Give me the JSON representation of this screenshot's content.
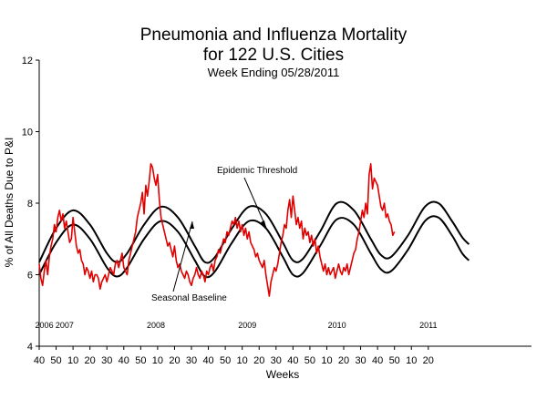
{
  "chart_data": {
    "type": "line",
    "title": "Pneumonia and Influenza Mortality",
    "title2": "for 122 U.S. Cities",
    "subtitle": "Week Ending  05/28/2011",
    "xlabel": "Weeks",
    "ylabel": "% of All Deaths Due to P&I",
    "ylim": [
      4,
      12
    ],
    "yticks": [
      4,
      6,
      8,
      10,
      12
    ],
    "week_index_range": [
      0,
      291
    ],
    "x_tick_labels": [
      "40",
      "50",
      "10",
      "20",
      "30",
      "40",
      "50",
      "10",
      "20",
      "30",
      "40",
      "50",
      "10",
      "20",
      "30",
      "40",
      "50",
      "10",
      "20",
      "30",
      "40",
      "50",
      "10",
      "20"
    ],
    "year_labels": [
      {
        "label": "2006",
        "week_index": 3
      },
      {
        "label": "2007",
        "week_index": 15
      },
      {
        "label": "2008",
        "week_index": 69
      },
      {
        "label": "2009",
        "week_index": 123
      },
      {
        "label": "2010",
        "week_index": 176
      },
      {
        "label": "2011",
        "week_index": 230
      }
    ],
    "annotations": [
      {
        "text": "Epidemic Threshold"
      },
      {
        "text": "Seasonal Baseline"
      }
    ],
    "grid": false,
    "series_colors": {
      "observed": "#e00000",
      "baseline": "#000000",
      "threshold": "#000000"
    },
    "series": [
      {
        "name": "Seasonal Baseline",
        "points": [
          [
            0,
            6.0
          ],
          [
            10,
            6.9
          ],
          [
            20,
            7.4
          ],
          [
            30,
            7.0
          ],
          [
            40,
            6.2
          ],
          [
            46,
            5.95
          ],
          [
            52,
            6.2
          ],
          [
            62,
            7.0
          ],
          [
            72,
            7.5
          ],
          [
            82,
            7.2
          ],
          [
            92,
            6.4
          ],
          [
            98,
            5.95
          ],
          [
            104,
            6.1
          ],
          [
            114,
            6.9
          ],
          [
            124,
            7.5
          ],
          [
            134,
            7.3
          ],
          [
            144,
            6.5
          ],
          [
            150,
            6.0
          ],
          [
            156,
            6.05
          ],
          [
            166,
            6.8
          ],
          [
            176,
            7.55
          ],
          [
            186,
            7.4
          ],
          [
            196,
            6.6
          ],
          [
            202,
            6.15
          ],
          [
            208,
            6.1
          ],
          [
            218,
            6.7
          ],
          [
            228,
            7.5
          ],
          [
            236,
            7.6
          ],
          [
            244,
            7.1
          ],
          [
            250,
            6.6
          ],
          [
            254,
            6.4
          ]
        ]
      },
      {
        "name": "Epidemic Threshold",
        "points": [
          [
            0,
            6.35
          ],
          [
            10,
            7.3
          ],
          [
            20,
            7.8
          ],
          [
            30,
            7.4
          ],
          [
            40,
            6.6
          ],
          [
            46,
            6.35
          ],
          [
            52,
            6.6
          ],
          [
            62,
            7.4
          ],
          [
            72,
            7.9
          ],
          [
            82,
            7.6
          ],
          [
            92,
            6.8
          ],
          [
            98,
            6.35
          ],
          [
            104,
            6.5
          ],
          [
            114,
            7.3
          ],
          [
            124,
            7.9
          ],
          [
            134,
            7.7
          ],
          [
            144,
            6.9
          ],
          [
            150,
            6.4
          ],
          [
            156,
            6.45
          ],
          [
            166,
            7.2
          ],
          [
            176,
            8.0
          ],
          [
            186,
            7.8
          ],
          [
            196,
            7.0
          ],
          [
            202,
            6.55
          ],
          [
            208,
            6.5
          ],
          [
            218,
            7.1
          ],
          [
            228,
            7.9
          ],
          [
            236,
            8.0
          ],
          [
            244,
            7.5
          ],
          [
            250,
            7.05
          ],
          [
            254,
            6.85
          ]
        ]
      },
      {
        "name": "Observed",
        "points": [
          [
            0,
            6.3
          ],
          [
            1,
            5.9
          ],
          [
            2,
            5.7
          ],
          [
            3,
            6.1
          ],
          [
            4,
            6.4
          ],
          [
            5,
            6.0
          ],
          [
            6,
            6.5
          ],
          [
            7,
            6.8
          ],
          [
            8,
            7.0
          ],
          [
            9,
            7.4
          ],
          [
            10,
            7.2
          ],
          [
            11,
            7.6
          ],
          [
            12,
            7.8
          ],
          [
            13,
            7.5
          ],
          [
            14,
            7.7
          ],
          [
            15,
            7.3
          ],
          [
            16,
            7.5
          ],
          [
            17,
            7.2
          ],
          [
            18,
            6.9
          ],
          [
            19,
            7.0
          ],
          [
            20,
            7.6
          ],
          [
            21,
            7.2
          ],
          [
            22,
            6.8
          ],
          [
            23,
            6.6
          ],
          [
            24,
            6.7
          ],
          [
            25,
            6.4
          ],
          [
            26,
            6.3
          ],
          [
            27,
            6.0
          ],
          [
            28,
            6.2
          ],
          [
            29,
            6.1
          ],
          [
            30,
            5.9
          ],
          [
            31,
            6.1
          ],
          [
            32,
            5.8
          ],
          [
            33,
            6.0
          ],
          [
            34,
            6.0
          ],
          [
            35,
            5.9
          ],
          [
            36,
            5.6
          ],
          [
            37,
            5.8
          ],
          [
            38,
            5.9
          ],
          [
            39,
            6.0
          ],
          [
            40,
            5.8
          ],
          [
            41,
            6.0
          ],
          [
            42,
            6.2
          ],
          [
            43,
            6.1
          ],
          [
            44,
            6.0
          ],
          [
            45,
            6.3
          ],
          [
            46,
            6.4
          ],
          [
            47,
            6.2
          ],
          [
            48,
            6.4
          ],
          [
            49,
            6.6
          ],
          [
            50,
            6.2
          ],
          [
            51,
            6.1
          ],
          [
            52,
            6.0
          ],
          [
            53,
            6.4
          ],
          [
            54,
            6.6
          ],
          [
            55,
            6.8
          ],
          [
            56,
            7.0
          ],
          [
            57,
            7.2
          ],
          [
            58,
            7.6
          ],
          [
            59,
            7.8
          ],
          [
            60,
            8.0
          ],
          [
            61,
            8.3
          ],
          [
            62,
            7.7
          ],
          [
            63,
            8.5
          ],
          [
            64,
            8.2
          ],
          [
            65,
            8.6
          ],
          [
            66,
            9.1
          ],
          [
            67,
            9.0
          ],
          [
            68,
            8.7
          ],
          [
            69,
            8.5
          ],
          [
            70,
            8.8
          ],
          [
            71,
            8.1
          ],
          [
            72,
            7.6
          ],
          [
            73,
            7.4
          ],
          [
            74,
            7.2
          ],
          [
            75,
            7.0
          ],
          [
            76,
            6.8
          ],
          [
            77,
            6.9
          ],
          [
            78,
            6.7
          ],
          [
            79,
            6.5
          ],
          [
            80,
            6.8
          ],
          [
            81,
            6.4
          ],
          [
            82,
            6.2
          ],
          [
            83,
            6.3
          ],
          [
            84,
            6.1
          ],
          [
            85,
            6.0
          ],
          [
            86,
            5.9
          ],
          [
            87,
            6.1
          ],
          [
            88,
            6.0
          ],
          [
            89,
            5.8
          ],
          [
            90,
            5.7
          ],
          [
            91,
            5.9
          ],
          [
            92,
            6.0
          ],
          [
            93,
            6.2
          ],
          [
            94,
            6.0
          ],
          [
            95,
            5.9
          ],
          [
            96,
            6.1
          ],
          [
            97,
            6.0
          ],
          [
            98,
            5.8
          ],
          [
            99,
            6.1
          ],
          [
            100,
            6.0
          ],
          [
            101,
            6.2
          ],
          [
            102,
            6.3
          ],
          [
            103,
            6.1
          ],
          [
            104,
            6.4
          ],
          [
            105,
            6.5
          ],
          [
            106,
            6.7
          ],
          [
            107,
            6.6
          ],
          [
            108,
            6.8
          ],
          [
            109,
            7.0
          ],
          [
            110,
            6.9
          ],
          [
            111,
            7.2
          ],
          [
            112,
            7.1
          ],
          [
            113,
            7.3
          ],
          [
            114,
            7.5
          ],
          [
            115,
            7.4
          ],
          [
            116,
            7.6
          ],
          [
            117,
            7.3
          ],
          [
            118,
            7.5
          ],
          [
            119,
            7.2
          ],
          [
            120,
            7.4
          ],
          [
            121,
            7.1
          ],
          [
            122,
            7.3
          ],
          [
            123,
            7.0
          ],
          [
            124,
            7.2
          ],
          [
            125,
            6.9
          ],
          [
            126,
            6.8
          ],
          [
            127,
            6.7
          ],
          [
            128,
            6.5
          ],
          [
            129,
            6.6
          ],
          [
            130,
            6.4
          ],
          [
            131,
            6.3
          ],
          [
            132,
            6.2
          ],
          [
            133,
            6.4
          ],
          [
            134,
            6.0
          ],
          [
            135,
            5.7
          ],
          [
            136,
            5.4
          ],
          [
            137,
            5.8
          ],
          [
            138,
            6.0
          ],
          [
            139,
            6.2
          ],
          [
            140,
            6.1
          ],
          [
            141,
            6.3
          ],
          [
            142,
            6.6
          ],
          [
            143,
            6.9
          ],
          [
            144,
            7.1
          ],
          [
            145,
            7.4
          ],
          [
            146,
            7.3
          ],
          [
            147,
            7.8
          ],
          [
            148,
            8.1
          ],
          [
            149,
            7.6
          ],
          [
            150,
            8.2
          ],
          [
            151,
            7.8
          ],
          [
            152,
            7.4
          ],
          [
            153,
            7.6
          ],
          [
            154,
            7.3
          ],
          [
            155,
            7.5
          ],
          [
            156,
            7.0
          ],
          [
            157,
            7.3
          ],
          [
            158,
            7.1
          ],
          [
            159,
            7.2
          ],
          [
            160,
            6.9
          ],
          [
            161,
            7.1
          ],
          [
            162,
            6.8
          ],
          [
            163,
            7.0
          ],
          [
            164,
            6.6
          ],
          [
            165,
            6.8
          ],
          [
            166,
            6.5
          ],
          [
            167,
            6.3
          ],
          [
            168,
            6.1
          ],
          [
            169,
            6.3
          ],
          [
            170,
            6.0
          ],
          [
            171,
            6.2
          ],
          [
            172,
            6.0
          ],
          [
            173,
            6.1
          ],
          [
            174,
            6.2
          ],
          [
            175,
            5.9
          ],
          [
            176,
            6.1
          ],
          [
            177,
            6.3
          ],
          [
            178,
            6.1
          ],
          [
            179,
            6.0
          ],
          [
            180,
            6.2
          ],
          [
            181,
            6.1
          ],
          [
            182,
            6.3
          ],
          [
            183,
            6.0
          ],
          [
            184,
            6.2
          ],
          [
            185,
            6.4
          ],
          [
            186,
            6.6
          ],
          [
            187,
            6.7
          ],
          [
            188,
            7.0
          ],
          [
            189,
            7.2
          ],
          [
            190,
            7.5
          ],
          [
            191,
            7.8
          ],
          [
            192,
            7.6
          ],
          [
            193,
            8.0
          ],
          [
            194,
            7.7
          ],
          [
            195,
            8.8
          ],
          [
            196,
            9.1
          ],
          [
            197,
            8.4
          ],
          [
            198,
            8.7
          ],
          [
            199,
            8.6
          ],
          [
            200,
            8.5
          ],
          [
            201,
            8.2
          ],
          [
            202,
            7.9
          ],
          [
            203,
            7.8
          ],
          [
            204,
            8.0
          ],
          [
            205,
            7.6
          ],
          [
            206,
            7.7
          ],
          [
            207,
            7.5
          ],
          [
            208,
            7.4
          ],
          [
            209,
            7.1
          ],
          [
            210,
            7.2
          ]
        ]
      }
    ]
  }
}
